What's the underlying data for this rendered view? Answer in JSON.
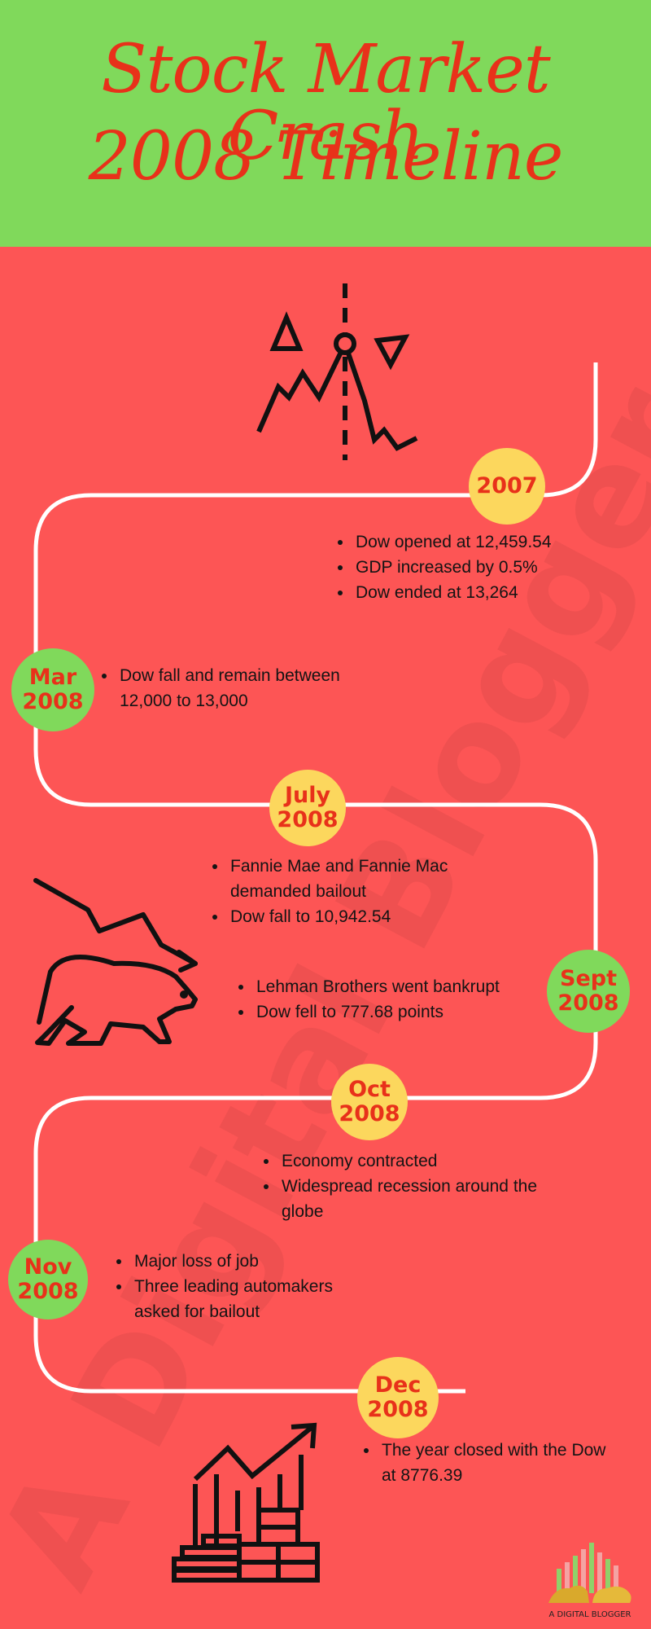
{
  "title": {
    "line1": "Stock Market Crash",
    "line2": "2008 Timeline"
  },
  "watermark": "A Digital Blogger",
  "colors": {
    "background": "#fd5555",
    "header": "#80d95b",
    "title": "#e8311a",
    "badge_yellow": "#fcd75d",
    "badge_green": "#80d95b",
    "path": "#ffffff"
  },
  "events": [
    {
      "line1": "2007",
      "line2": "",
      "points": [
        "Dow opened at 12,459.54",
        "GDP increased by 0.5%",
        "Dow ended at 13,264"
      ]
    },
    {
      "line1": "Mar",
      "line2": "2008",
      "points": [
        "Dow fall and remain between 12,000 to 13,000"
      ]
    },
    {
      "line1": "July",
      "line2": "2008",
      "points": [
        "Fannie Mae and Fannie Mac demanded bailout",
        "Dow fall to 10,942.54"
      ]
    },
    {
      "line1": "Sept",
      "line2": "2008",
      "points": [
        "Lehman Brothers went bankrupt",
        "Dow fell to 777.68 points"
      ]
    },
    {
      "line1": "Oct",
      "line2": "2008",
      "points": [
        "Economy contracted",
        "Widespread recession around the globe"
      ]
    },
    {
      "line1": "Nov",
      "line2": "2008",
      "points": [
        "Major loss of job",
        "Three leading automakers asked for bailout"
      ]
    },
    {
      "line1": "Dec",
      "line2": "2008",
      "points": [
        "The year closed with the Dow at 8776.39"
      ]
    }
  ],
  "icons": {
    "peak": "market-peak-chart-icon",
    "bear": "bear-market-icon",
    "growth": "growth-chart-coins-icon"
  },
  "logo": {
    "text": "A DIGITAL BLOGGER"
  }
}
